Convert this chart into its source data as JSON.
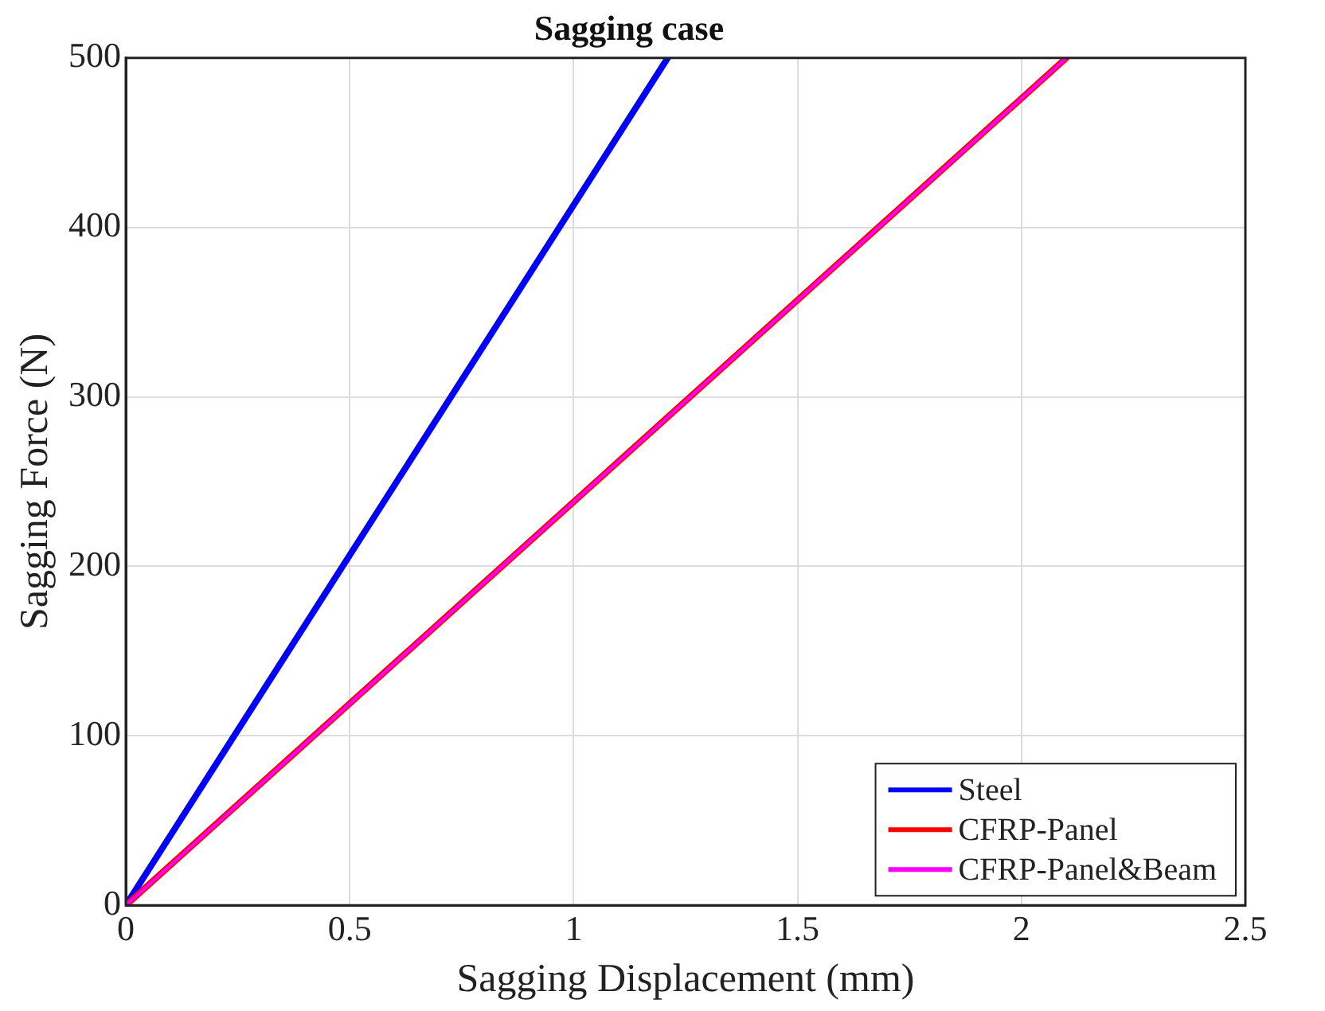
{
  "chart_data": {
    "type": "line",
    "title": "Sagging case",
    "xlabel": "Sagging Displacement (mm)",
    "ylabel": "Sagging Force (N)",
    "xlim": [
      0,
      2.5
    ],
    "xticks": [
      0,
      0.5,
      1,
      1.5,
      2,
      2.5
    ],
    "ylim": [
      0,
      500
    ],
    "yticks": [
      0,
      100,
      200,
      300,
      400,
      500
    ],
    "grid": true,
    "legend": "bottom right",
    "marker": "none",
    "line_style": "solid",
    "series": [
      {
        "name": "Steel",
        "color": "#0000ff",
        "x": [
          0,
          1.21
        ],
        "values": [
          0,
          500
        ]
      },
      {
        "name": "CFRP-Panel",
        "color": "#ff0000",
        "x": [
          0,
          2.1
        ],
        "values": [
          0,
          500
        ]
      },
      {
        "name": "CFRP-Panel&Beam",
        "color": "#ff00ff",
        "x": [
          0,
          2.1
        ],
        "values": [
          0,
          500
        ]
      }
    ]
  }
}
